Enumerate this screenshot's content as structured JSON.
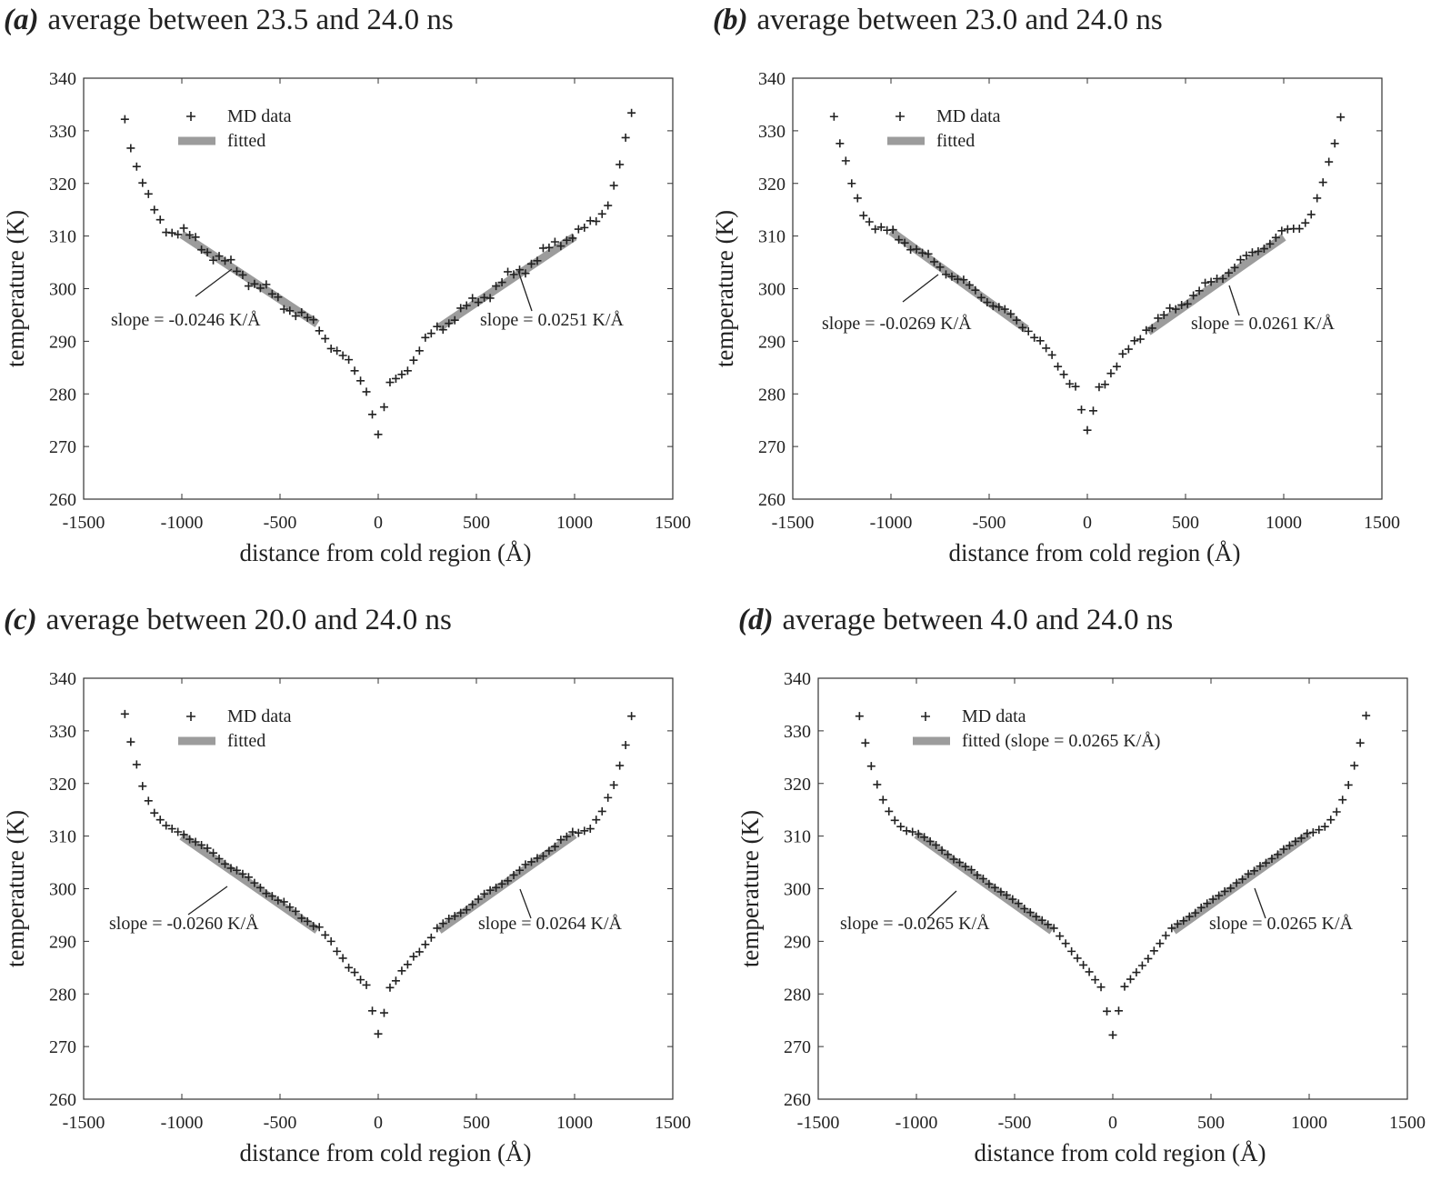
{
  "chart_data": [
    {
      "type": "scatter",
      "panel_label": "(a)",
      "title": "average between 23.5 and 24.0 ns",
      "xlabel": "distance from cold region (Å)",
      "ylabel": "temperature (K)",
      "xlim": [
        -1500,
        1500
      ],
      "ylim": [
        260,
        340
      ],
      "xticks": [
        "-1500",
        "-1000",
        "-500",
        "0",
        "500",
        "1000",
        "1500"
      ],
      "yticks": [
        "260",
        "270",
        "280",
        "290",
        "300",
        "310",
        "320",
        "330",
        "340"
      ],
      "legend": [
        "MD data",
        "fitted"
      ],
      "fits": [
        {
          "x": [
            -1000,
            -310
          ],
          "y": [
            310.3,
            293.3
          ],
          "label": "slope = -0.0246 K/Å"
        },
        {
          "x": [
            310,
            1000
          ],
          "y": [
            292.6,
            309.9
          ],
          "label": "slope = 0.0251 K/Å"
        }
      ],
      "noise": 0.9,
      "series": [
        {
          "name": "MD data",
          "x": [],
          "y": []
        }
      ]
    },
    {
      "type": "scatter",
      "panel_label": "(b)",
      "title": "average between 23.0 and 24.0 ns",
      "xlabel": "distance from cold region (Å)",
      "ylabel": "temperature (K)",
      "xlim": [
        -1500,
        1500
      ],
      "ylim": [
        260,
        340
      ],
      "xticks": [
        "-1500",
        "-1000",
        "-500",
        "0",
        "500",
        "1000",
        "1500"
      ],
      "yticks": [
        "260",
        "270",
        "280",
        "290",
        "300",
        "310",
        "320",
        "330",
        "340"
      ],
      "legend": [
        "MD data",
        "fitted"
      ],
      "fits": [
        {
          "x": [
            -1000,
            -310
          ],
          "y": [
            310.9,
            292.3
          ],
          "label": "slope = -0.0269 K/Å"
        },
        {
          "x": [
            310,
            1000
          ],
          "y": [
            291.8,
            309.8
          ],
          "label": "slope = 0.0261 K/Å"
        }
      ],
      "noise": 0.6,
      "series": [
        {
          "name": "MD data",
          "x": [],
          "y": []
        }
      ]
    },
    {
      "type": "scatter",
      "panel_label": "(c)",
      "title": "average between 20.0 and 24.0 ns",
      "xlabel": "distance from cold region (Å)",
      "ylabel": "temperature (K)",
      "xlim": [
        -1500,
        1500
      ],
      "ylim": [
        260,
        340
      ],
      "xticks": [
        "-1500",
        "-1000",
        "-500",
        "0",
        "500",
        "1000",
        "1500"
      ],
      "yticks": [
        "260",
        "270",
        "280",
        "290",
        "300",
        "310",
        "320",
        "330",
        "340"
      ],
      "legend": [
        "MD data",
        "fitted"
      ],
      "fits": [
        {
          "x": [
            -1000,
            -310
          ],
          "y": [
            310.0,
            292.1
          ],
          "label": "slope = -0.0260 K/Å"
        },
        {
          "x": [
            310,
            1000
          ],
          "y": [
            292.1,
            310.3
          ],
          "label": "slope = 0.0264 K/Å"
        }
      ],
      "noise": 0.3,
      "series": [
        {
          "name": "MD data",
          "x": [],
          "y": []
        }
      ]
    },
    {
      "type": "scatter",
      "panel_label": "(d)",
      "title": "average between 4.0 and 24.0 ns",
      "xlabel": "distance from cold region (Å)",
      "ylabel": "temperature (K)",
      "xlim": [
        -1500,
        1500
      ],
      "ylim": [
        260,
        340
      ],
      "xticks": [
        "-1500",
        "-1000",
        "-500",
        "0",
        "500",
        "1000",
        "1500"
      ],
      "yticks": [
        "260",
        "270",
        "280",
        "290",
        "300",
        "310",
        "320",
        "330",
        "340"
      ],
      "legend": [
        "MD data",
        "fitted (slope = 0.0265 K/Å)"
      ],
      "fits": [
        {
          "x": [
            -1000,
            -310
          ],
          "y": [
            310.3,
            292.0
          ],
          "label": "slope = -0.0265 K/Å"
        },
        {
          "x": [
            310,
            1000
          ],
          "y": [
            292.0,
            310.3
          ],
          "label": "slope = 0.0265 K/Å"
        }
      ],
      "noise": 0.1,
      "series": [
        {
          "name": "MD data",
          "x": [],
          "y": []
        }
      ]
    }
  ]
}
